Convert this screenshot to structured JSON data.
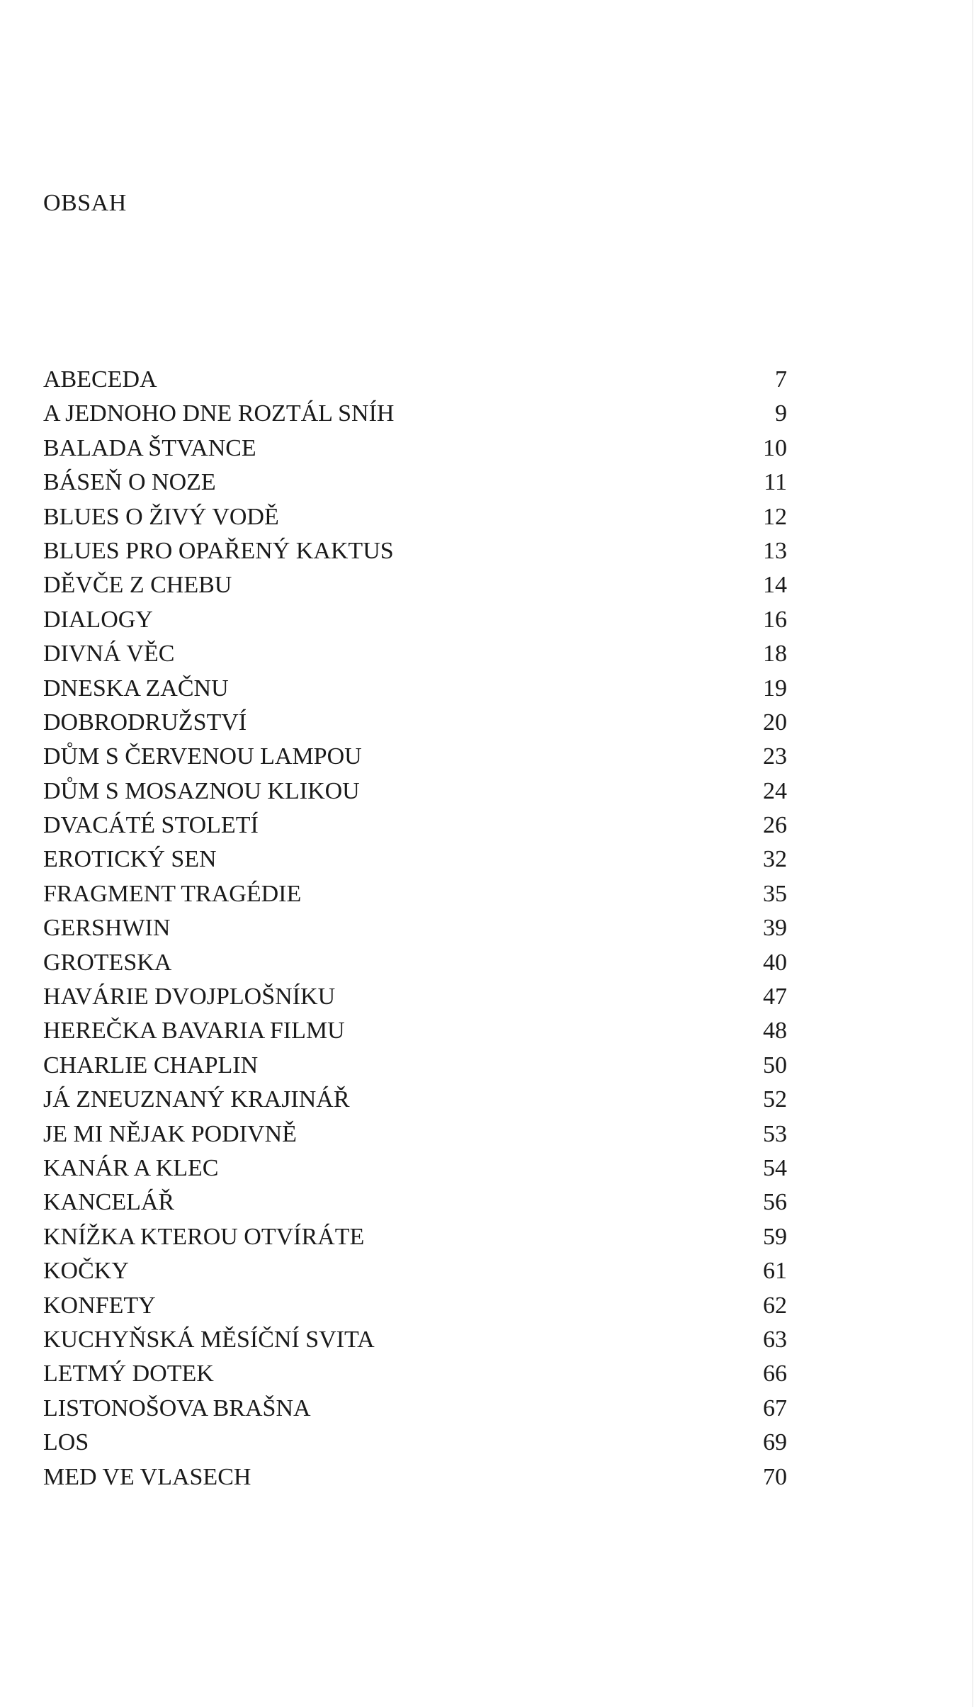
{
  "title": "OBSAH",
  "entries": [
    {
      "title": "ABECEDA",
      "page": "7"
    },
    {
      "title": "A JEDNOHO DNE ROZTÁL SNÍH",
      "page": "9"
    },
    {
      "title": "BALADA ŠTVANCE",
      "page": "10"
    },
    {
      "title": "BÁSEŇ O NOZE",
      "page": "11"
    },
    {
      "title": "BLUES O ŽIVÝ VODĚ",
      "page": "12"
    },
    {
      "title": "BLUES PRO OPAŘENÝ KAKTUS",
      "page": "13"
    },
    {
      "title": "DĚVČE Z CHEBU",
      "page": "14"
    },
    {
      "title": "DIALOGY",
      "page": "16"
    },
    {
      "title": "DIVNÁ VĚC",
      "page": "18"
    },
    {
      "title": "DNESKA ZAČNU",
      "page": "19"
    },
    {
      "title": "DOBRODRUŽSTVÍ",
      "page": "20"
    },
    {
      "title": "DŮM S ČERVENOU LAMPOU",
      "page": "23"
    },
    {
      "title": "DŮM S MOSAZNOU KLIKOU",
      "page": "24"
    },
    {
      "title": "DVACÁTÉ STOLETÍ",
      "page": "26"
    },
    {
      "title": "EROTICKÝ SEN",
      "page": "32"
    },
    {
      "title": "FRAGMENT TRAGÉDIE",
      "page": "35"
    },
    {
      "title": "GERSHWIN",
      "page": "39"
    },
    {
      "title": "GROTESKA",
      "page": "40"
    },
    {
      "title": "HAVÁRIE DVOJPLOŠNÍKU",
      "page": "47"
    },
    {
      "title": "HEREČKA BAVARIA FILMU",
      "page": "48"
    },
    {
      "title": "CHARLIE CHAPLIN",
      "page": "50"
    },
    {
      "title": "JÁ ZNEUZNANÝ KRAJINÁŘ",
      "page": "52"
    },
    {
      "title": "JE MI NĚJAK PODIVNĚ",
      "page": "53"
    },
    {
      "title": "KANÁR A KLEC",
      "page": "54"
    },
    {
      "title": "KANCELÁŘ",
      "page": "56"
    },
    {
      "title": "KNÍŽKA KTEROU OTVÍRÁTE",
      "page": "59"
    },
    {
      "title": "KOČKY",
      "page": "61"
    },
    {
      "title": "KONFETY",
      "page": "62"
    },
    {
      "title": "KUCHYŇSKÁ MĚSÍČNÍ SVITA",
      "page": "63"
    },
    {
      "title": "LETMÝ DOTEK",
      "page": "66"
    },
    {
      "title": "LISTONOŠOVA BRAŠNA",
      "page": "67"
    },
    {
      "title": "LOS",
      "page": "69"
    },
    {
      "title": "MED VE VLASECH",
      "page": "70"
    }
  ]
}
